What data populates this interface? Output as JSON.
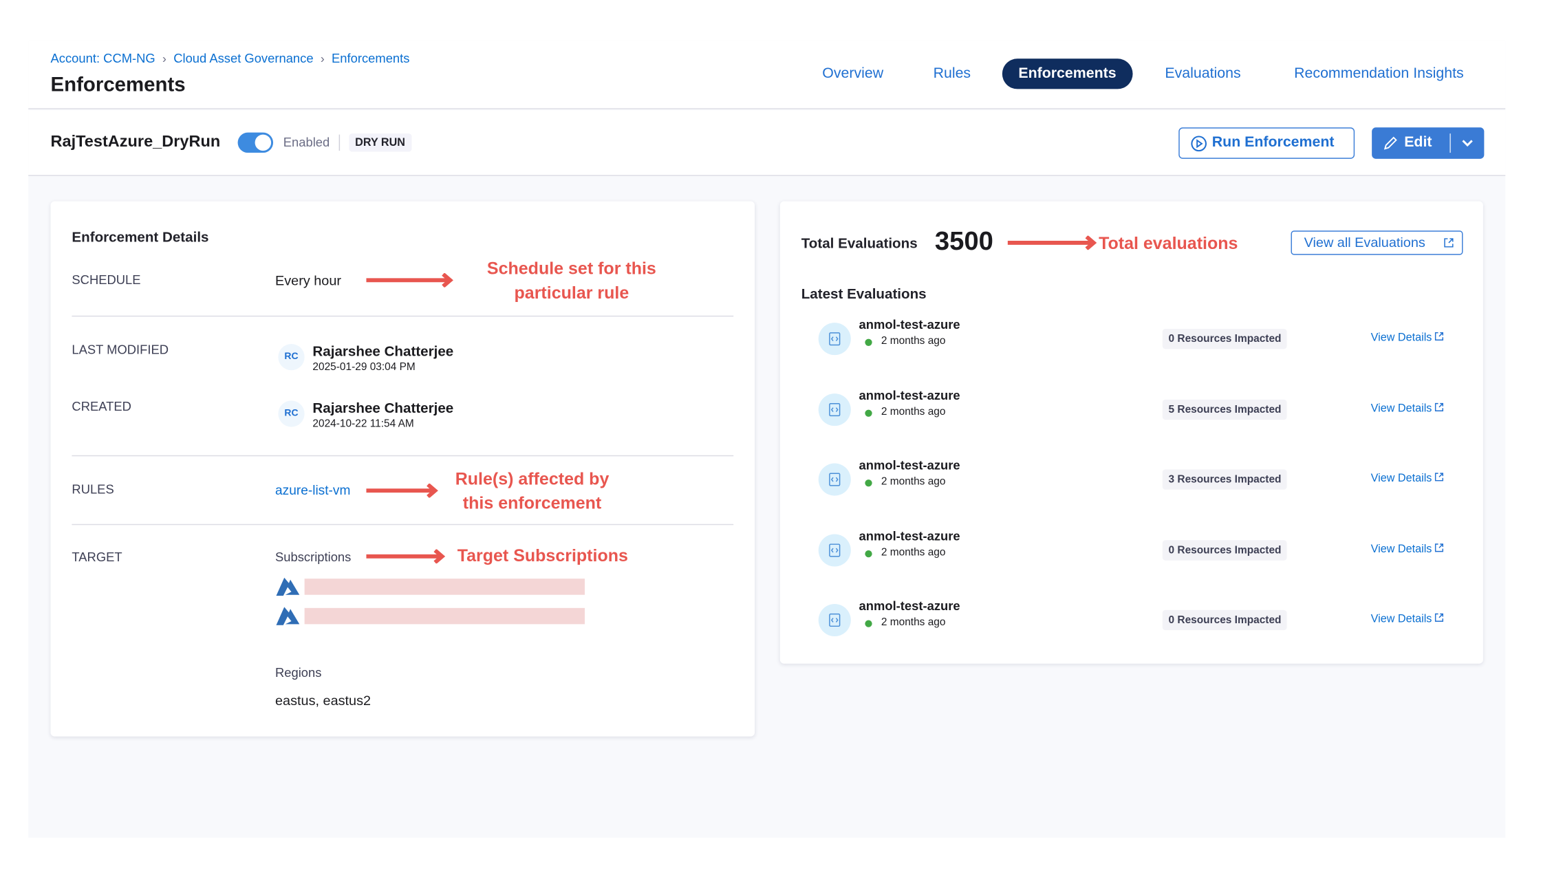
{
  "breadcrumb": [
    "Account: CCM-NG",
    "Cloud Asset Governance",
    "Enforcements"
  ],
  "page_title": "Enforcements",
  "tabs": [
    {
      "label": "Overview"
    },
    {
      "label": "Rules"
    },
    {
      "label": "Enforcements",
      "active": true
    },
    {
      "label": "Evaluations"
    },
    {
      "label": "Recommendation Insights"
    }
  ],
  "enforcement": {
    "name": "RajTestAzure_DryRun",
    "enabled": true,
    "enabled_label": "Enabled",
    "mode_badge": "DRY RUN"
  },
  "actions": {
    "run": "Run Enforcement",
    "edit": "Edit"
  },
  "details": {
    "title": "Enforcement Details",
    "schedule_label": "SCHEDULE",
    "schedule": "Every hour",
    "last_modified_label": "LAST MODIFIED",
    "last_modified": {
      "initials": "RC",
      "name": "Rajarshee Chatterjee",
      "date": "2025-01-29 03:04 PM"
    },
    "created_label": "CREATED",
    "created": {
      "initials": "RC",
      "name": "Rajarshee Chatterjee",
      "date": "2024-10-22 11:54 AM"
    },
    "rules_label": "RULES",
    "rule": "azure-list-vm",
    "target_label": "TARGET",
    "subscriptions_label": "Subscriptions",
    "regions_label": "Regions",
    "regions": "eastus, eastus2"
  },
  "annotations": {
    "schedule": [
      "Schedule set for this",
      "particular rule"
    ],
    "rules": [
      "Rule(s) affected by",
      "this enforcement"
    ],
    "target": "Target Subscriptions",
    "total": "Total evaluations",
    "color": "#e8564f"
  },
  "evaluations": {
    "total_label": "Total Evaluations",
    "total": "3500",
    "view_all": "View all Evaluations",
    "latest_title": "Latest Evaluations",
    "items": [
      {
        "name": "anmol-test-azure",
        "time": "2 months ago",
        "badge": "0 Resources Impacted",
        "link": "View Details"
      },
      {
        "name": "anmol-test-azure",
        "time": "2 months ago",
        "badge": "5 Resources Impacted",
        "link": "View Details"
      },
      {
        "name": "anmol-test-azure",
        "time": "2 months ago",
        "badge": "3 Resources Impacted",
        "link": "View Details"
      },
      {
        "name": "anmol-test-azure",
        "time": "2 months ago",
        "badge": "0 Resources Impacted",
        "link": "View Details"
      },
      {
        "name": "anmol-test-azure",
        "time": "2 months ago",
        "badge": "0 Resources Impacted",
        "link": "View Details"
      }
    ]
  },
  "colors": {
    "accent": "#0a6fd1",
    "active_tab": "#0f2d5e",
    "edit_button": "#3a7bd5",
    "status_ok": "#42a845"
  }
}
